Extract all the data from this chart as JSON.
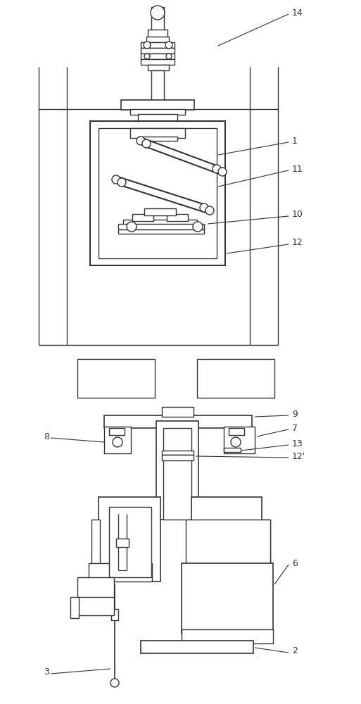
{
  "bg_color": "#ffffff",
  "lc": "#333333",
  "fig_width": 5.13,
  "fig_height": 10.0,
  "dpi": 100
}
